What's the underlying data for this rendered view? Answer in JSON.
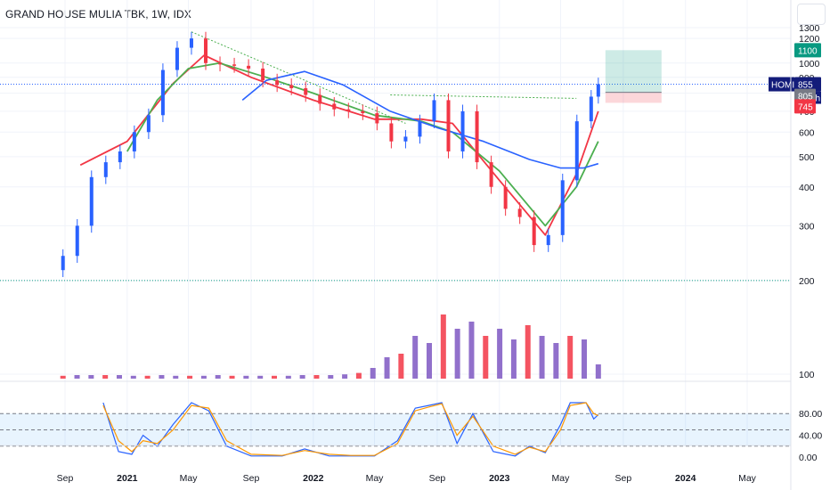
{
  "title": "GRAND HOUSE MULIA TBK, 1W, IDX",
  "price_badges": {
    "target": "1100",
    "symbol": "HOMI",
    "last": "855",
    "countdown": "3d 9h",
    "entry": "805",
    "stop": "745"
  },
  "chart_data": [
    {
      "type": "line",
      "panel": "price",
      "title": "GRAND HOUSE MULIA TBK, 1W, IDX",
      "scale": "log",
      "ylim": [
        100,
        1300
      ],
      "y_ticks": [
        1300,
        1200,
        1000,
        900,
        800,
        700,
        600,
        500,
        400,
        300,
        200,
        100
      ],
      "x_ticks": [
        "Sep",
        "2021",
        "May",
        "Sep",
        "2022",
        "May",
        "Sep",
        "2023",
        "May",
        "Sep",
        "2024",
        "May"
      ],
      "x_ticks_bold": [
        "2021",
        "2022",
        "2023",
        "2024"
      ],
      "grid": true,
      "colors": {
        "up": "#089981",
        "down": "#f23645",
        "bull_candle": "#2962ff"
      },
      "candles": [
        {
          "date": "2020-08-28",
          "close": 240
        },
        {
          "date": "2020-09-25",
          "close": 300
        },
        {
          "date": "2020-10-23",
          "close": 430
        },
        {
          "date": "2020-11-20",
          "close": 480
        },
        {
          "date": "2020-12-18",
          "close": 520
        },
        {
          "date": "2021-01-15",
          "close": 600
        },
        {
          "date": "2021-02-12",
          "close": 680
        },
        {
          "date": "2021-03-12",
          "close": 950
        },
        {
          "date": "2021-04-09",
          "close": 1120
        },
        {
          "date": "2021-05-07",
          "close": 1200
        },
        {
          "date": "2021-06-04",
          "close": 1000
        },
        {
          "date": "2021-07-02",
          "close": 990
        },
        {
          "date": "2021-07-30",
          "close": 980
        },
        {
          "date": "2021-08-27",
          "close": 960
        },
        {
          "date": "2021-09-24",
          "close": 880
        },
        {
          "date": "2021-10-22",
          "close": 850
        },
        {
          "date": "2021-11-19",
          "close": 830
        },
        {
          "date": "2021-12-17",
          "close": 790
        },
        {
          "date": "2022-01-14",
          "close": 740
        },
        {
          "date": "2022-02-11",
          "close": 710
        },
        {
          "date": "2022-03-11",
          "close": 700
        },
        {
          "date": "2022-04-08",
          "close": 690
        },
        {
          "date": "2022-05-06",
          "close": 640
        },
        {
          "date": "2022-06-03",
          "close": 560
        },
        {
          "date": "2022-07-01",
          "close": 580
        },
        {
          "date": "2022-07-29",
          "close": 650
        },
        {
          "date": "2022-08-26",
          "close": 760
        },
        {
          "date": "2022-09-23",
          "close": 520
        },
        {
          "date": "2022-10-21",
          "close": 700
        },
        {
          "date": "2022-11-18",
          "close": 480
        },
        {
          "date": "2022-12-16",
          "close": 400
        },
        {
          "date": "2023-01-13",
          "close": 340
        },
        {
          "date": "2023-02-10",
          "close": 320
        },
        {
          "date": "2023-03-10",
          "close": 260
        },
        {
          "date": "2023-04-07",
          "close": 280
        },
        {
          "date": "2023-05-05",
          "close": 420
        },
        {
          "date": "2023-06-02",
          "close": 650
        },
        {
          "date": "2023-06-30",
          "close": 780
        },
        {
          "date": "2023-07-14",
          "close": 855
        }
      ],
      "series": [
        {
          "color": "#f23645",
          "x": [
            "2020-10-01",
            "2021-01-01",
            "2021-04-01",
            "2021-06-01",
            "2021-09-01",
            "2022-01-01",
            "2022-05-01",
            "2022-08-01",
            "2022-10-01",
            "2023-01-01",
            "2023-04-01",
            "2023-06-01",
            "2023-07-14"
          ],
          "values": [
            470,
            560,
            860,
            1060,
            900,
            760,
            660,
            660,
            640,
            420,
            280,
            440,
            700
          ]
        },
        {
          "color": "#4caf50",
          "x": [
            "2021-01-01",
            "2021-03-01",
            "2021-05-01",
            "2021-07-01",
            "2021-10-01",
            "2022-01-01",
            "2022-05-01",
            "2022-08-01",
            "2022-10-01",
            "2023-01-01",
            "2023-04-01",
            "2023-06-01",
            "2023-07-14"
          ],
          "values": [
            520,
            760,
            960,
            1000,
            900,
            800,
            680,
            650,
            600,
            450,
            300,
            400,
            560
          ]
        },
        {
          "color": "#2962ff",
          "x": [
            "2021-08-15",
            "2021-10-01",
            "2021-12-15",
            "2022-03-01",
            "2022-06-01",
            "2022-09-01",
            "2022-12-01",
            "2023-03-01",
            "2023-05-01",
            "2023-06-15",
            "2023-07-14"
          ],
          "values": [
            760,
            880,
            940,
            850,
            700,
            620,
            560,
            490,
            460,
            460,
            475
          ]
        }
      ],
      "levels": [
        {
          "value": 855,
          "color": "#2962ff",
          "style": "dotted"
        },
        {
          "value": 200,
          "color": "#089981",
          "style": "dotted"
        }
      ],
      "trendlines": [
        {
          "from": {
            "date": "2021-05-07",
            "value": 1260
          },
          "to": {
            "date": "2022-07-01",
            "value": 640
          },
          "color": "#4caf50",
          "style": "dotted"
        },
        {
          "from": {
            "date": "2022-06-01",
            "value": 790
          },
          "to": {
            "date": "2023-06-01",
            "value": 770
          },
          "color": "#4caf50",
          "style": "dotted"
        }
      ],
      "position": {
        "start": "2023-07-14",
        "end": "2023-11-15",
        "entry": 805,
        "target": 1100,
        "stop": 745
      }
    },
    {
      "type": "bar",
      "panel": "volume",
      "note": "relative volume, 0-1",
      "values": [
        0.04,
        0.05,
        0.05,
        0.05,
        0.05,
        0.04,
        0.04,
        0.05,
        0.04,
        0.04,
        0.04,
        0.05,
        0.04,
        0.04,
        0.04,
        0.04,
        0.04,
        0.05,
        0.05,
        0.05,
        0.06,
        0.08,
        0.15,
        0.3,
        0.35,
        0.6,
        0.5,
        0.9,
        0.7,
        0.8,
        0.6,
        0.7,
        0.55,
        0.75,
        0.6,
        0.5,
        0.6,
        0.55,
        0.2
      ],
      "colors": {
        "up": "#7e57c2",
        "down": "#f23645"
      }
    },
    {
      "type": "line",
      "panel": "stochastic",
      "ylim": [
        0,
        100
      ],
      "y_ticks": [
        "80.00",
        "40.00",
        "0.00"
      ],
      "bands": [
        20,
        50,
        80
      ],
      "series": [
        {
          "color": "#2962ff",
          "x": [
            "2020-11-15",
            "2020-12-15",
            "2021-01-10",
            "2021-02-01",
            "2021-03-01",
            "2021-04-01",
            "2021-05-07",
            "2021-06-10",
            "2021-07-15",
            "2021-09-01",
            "2021-11-01",
            "2021-12-15",
            "2022-02-01",
            "2022-03-15",
            "2022-05-01",
            "2022-06-15",
            "2022-07-20",
            "2022-08-15",
            "2022-09-10",
            "2022-10-10",
            "2022-11-10",
            "2022-12-20",
            "2023-02-01",
            "2023-03-01",
            "2023-04-01",
            "2023-05-01",
            "2023-05-20",
            "2023-06-20",
            "2023-07-05",
            "2023-07-14"
          ],
          "values": [
            100,
            10,
            5,
            40,
            20,
            60,
            100,
            85,
            20,
            2,
            2,
            15,
            2,
            2,
            2,
            30,
            90,
            95,
            100,
            25,
            80,
            10,
            2,
            20,
            8,
            60,
            100,
            100,
            70,
            78
          ]
        },
        {
          "color": "#ff9800",
          "x": [
            "2020-11-15",
            "2020-12-15",
            "2021-01-10",
            "2021-02-01",
            "2021-03-01",
            "2021-04-01",
            "2021-05-07",
            "2021-06-10",
            "2021-07-15",
            "2021-09-01",
            "2021-11-01",
            "2021-12-15",
            "2022-02-01",
            "2022-03-15",
            "2022-05-01",
            "2022-06-15",
            "2022-07-20",
            "2022-08-15",
            "2022-09-10",
            "2022-10-10",
            "2022-11-10",
            "2022-12-20",
            "2023-02-01",
            "2023-03-01",
            "2023-04-01",
            "2023-05-01",
            "2023-05-20",
            "2023-06-20",
            "2023-07-05",
            "2023-07-14"
          ],
          "values": [
            95,
            30,
            10,
            30,
            25,
            50,
            95,
            90,
            30,
            5,
            3,
            12,
            5,
            3,
            3,
            25,
            85,
            92,
            98,
            40,
            75,
            20,
            5,
            18,
            10,
            50,
            95,
            100,
            80,
            76
          ]
        }
      ]
    }
  ]
}
